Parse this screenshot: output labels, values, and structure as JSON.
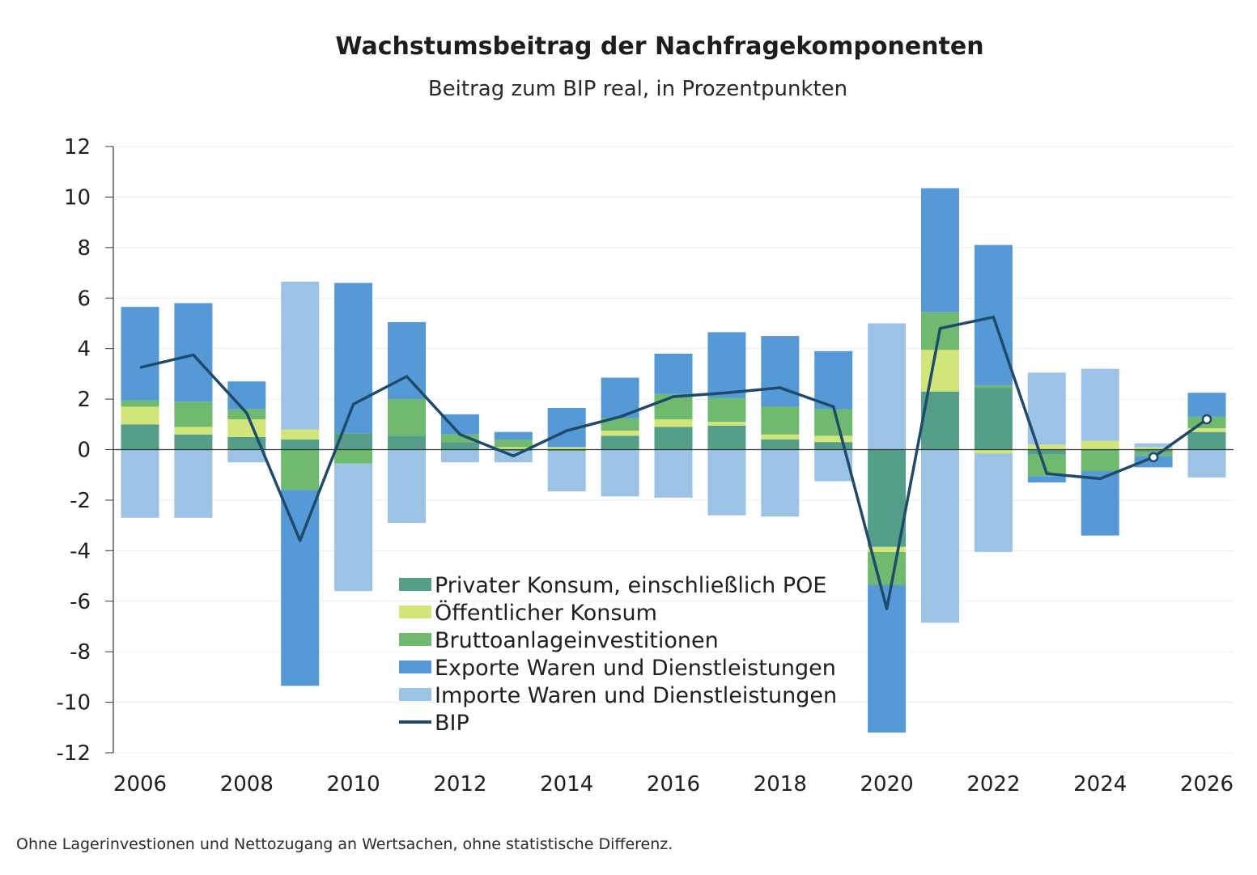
{
  "title": "Wachstumsbeitrag der Nachfragekomponenten",
  "subtitle": "Beitrag zum BIP real, in Prozentpunkten",
  "footnote": "Ohne Lagerinvestionen und Nettozugang an Wertsachen, ohne statistische Differenz.",
  "chart_data": {
    "type": "bar",
    "stacked": true,
    "title": "Wachstumsbeitrag der Nachfragekomponenten",
    "subtitle": "Beitrag zum BIP real, in Prozentpunkten",
    "xlabel": "",
    "ylabel": "",
    "ylim": [
      -12,
      12
    ],
    "yticks": [
      12,
      10,
      8,
      6,
      4,
      2,
      0,
      -2,
      -4,
      -6,
      -8,
      -10,
      -12
    ],
    "xtick_labels": [
      "2006",
      "2008",
      "2010",
      "2012",
      "2014",
      "2016",
      "2018",
      "2020",
      "2022",
      "2024",
      "2026"
    ],
    "categories": [
      2006,
      2007,
      2008,
      2009,
      2010,
      2011,
      2012,
      2013,
      2014,
      2015,
      2016,
      2017,
      2018,
      2019,
      2020,
      2021,
      2022,
      2023,
      2024,
      2025,
      2026
    ],
    "grid": true,
    "legend_position": "bottom-center",
    "series": [
      {
        "name": "Privater Konsum, einschließlich POE",
        "color": "#559e8a",
        "values": [
          1.0,
          0.6,
          0.5,
          0.4,
          0.65,
          0.55,
          0.3,
          -0.05,
          -0.05,
          0.55,
          0.9,
          0.95,
          0.4,
          0.3,
          -3.85,
          2.3,
          2.45,
          -0.2,
          -0.05,
          -0.1,
          0.7
        ]
      },
      {
        "name": "Öffentlicher Konsum",
        "color": "#d1e57a",
        "values": [
          0.7,
          0.3,
          0.7,
          0.4,
          0.0,
          0.0,
          0.0,
          0.1,
          0.1,
          0.2,
          0.3,
          0.15,
          0.2,
          0.25,
          -0.2,
          1.65,
          -0.15,
          0.2,
          0.35,
          0.1,
          0.15
        ]
      },
      {
        "name": "Bruttoanlageinvestitionen",
        "color": "#6fba6e",
        "values": [
          0.25,
          1.0,
          0.4,
          -1.6,
          -0.55,
          1.45,
          0.3,
          0.3,
          0.0,
          0.5,
          1.0,
          0.95,
          1.1,
          1.05,
          -1.3,
          1.5,
          0.1,
          -0.85,
          -0.8,
          -0.15,
          0.45
        ]
      },
      {
        "name": "Exporte Waren und Dienstleistungen",
        "color": "#559ad6",
        "values": [
          3.7,
          3.9,
          1.1,
          -7.75,
          5.95,
          3.05,
          0.8,
          0.3,
          1.55,
          1.6,
          1.6,
          2.6,
          2.8,
          2.3,
          -5.85,
          4.9,
          5.55,
          -0.25,
          -2.55,
          -0.45,
          0.95
        ]
      },
      {
        "name": "Importe Waren und Dienstleistungen",
        "color": "#9cc3e6",
        "values": [
          -2.7,
          -2.7,
          -0.5,
          5.85,
          -5.05,
          -2.9,
          -0.5,
          -0.45,
          -1.6,
          -1.85,
          -1.9,
          -2.6,
          -2.65,
          -1.25,
          5.0,
          -6.85,
          -3.9,
          2.85,
          2.85,
          0.15,
          -1.1
        ]
      }
    ],
    "line": {
      "name": "BIP",
      "color": "#1f4a6b",
      "values": [
        3.25,
        3.75,
        1.45,
        -3.6,
        1.8,
        2.9,
        0.6,
        -0.25,
        0.75,
        1.3,
        2.1,
        2.25,
        2.45,
        1.7,
        -6.3,
        4.8,
        5.25,
        -0.95,
        -1.15,
        -0.3,
        1.2
      ],
      "forecast_markers_from": 2025
    },
    "legend": [
      "Privater Konsum, einschließlich POE",
      "Öffentlicher Konsum",
      "Bruttoanlageinvestitionen",
      "Exporte Waren und Dienstleistungen",
      "Importe Waren und Dienstleistungen",
      "BIP"
    ]
  }
}
